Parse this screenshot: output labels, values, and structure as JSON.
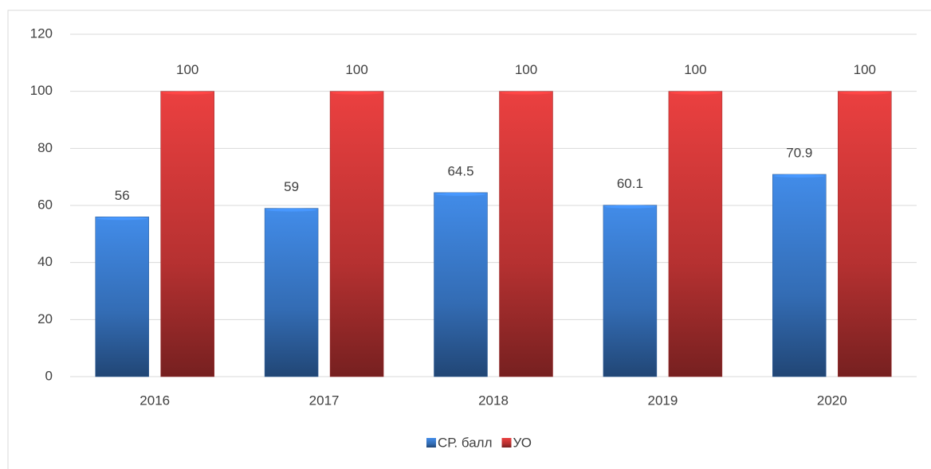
{
  "chart_data": {
    "type": "bar",
    "categories": [
      "2016",
      "2017",
      "2018",
      "2019",
      "2020"
    ],
    "series": [
      {
        "name": "СР. балл",
        "color": "#3c7fd4",
        "values": [
          56,
          59,
          64.5,
          60.1,
          70.9
        ]
      },
      {
        "name": "УО",
        "color": "#d63a3a",
        "values": [
          100,
          100,
          100,
          100,
          100
        ]
      }
    ],
    "ylim": [
      0,
      120
    ],
    "yticks": [
      0,
      20,
      40,
      60,
      80,
      100,
      120
    ],
    "grid": true,
    "legend": "bottom",
    "data_labels": true
  }
}
